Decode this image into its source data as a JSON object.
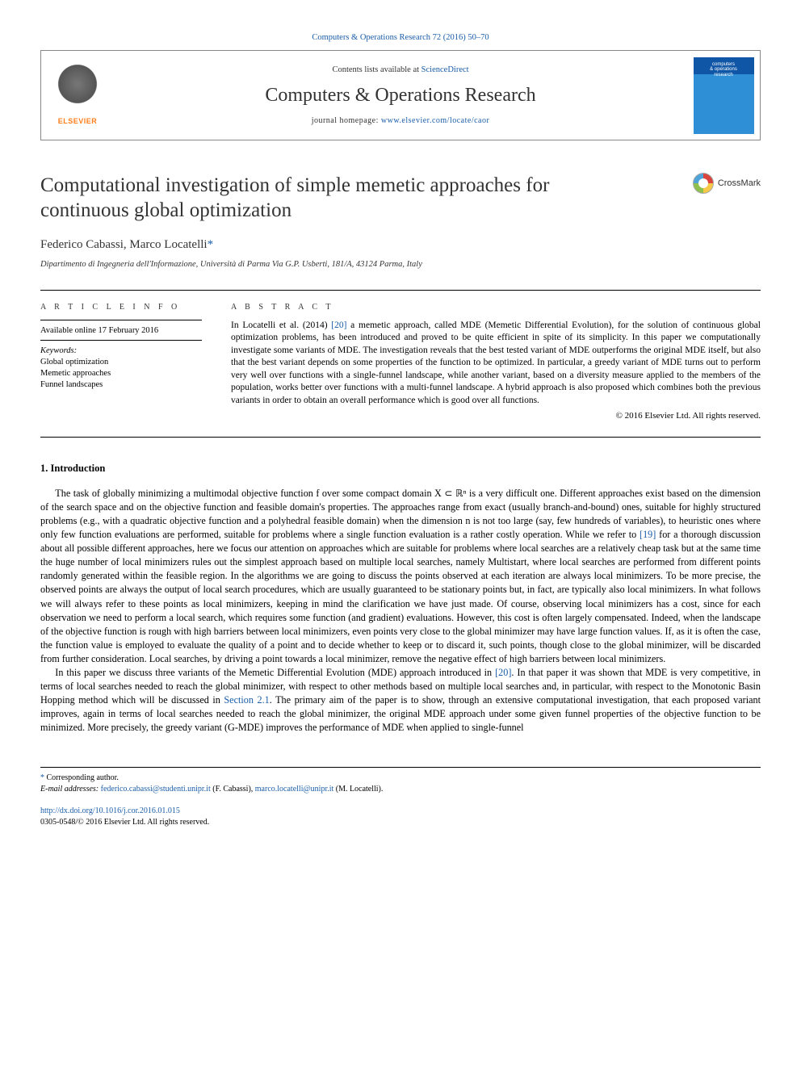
{
  "header": {
    "top_link_text": "Computers & Operations Research 72 (2016) 50–70",
    "contents_prefix": "Contents lists available at ",
    "contents_link": "ScienceDirect",
    "journal_title": "Computers & Operations Research",
    "homepage_prefix": "journal homepage: ",
    "homepage_url": "www.elsevier.com/locate/caor",
    "elsevier_label": "ELSEVIER",
    "cover_text_lines": [
      "computers",
      "& operations",
      "research"
    ]
  },
  "article": {
    "title": "Computational investigation of simple memetic approaches for continuous global optimization",
    "crossmark_label": "CrossMark",
    "authors_html_prefix": "Federico Cabassi, Marco Locatelli",
    "corr_symbol": "*",
    "affiliation": "Dipartimento di Ingegneria dell'Informazione, Università di Parma Via G.P. Usberti, 181/A, 43124 Parma, Italy"
  },
  "info": {
    "heading": "A R T I C L E  I N F O",
    "available": "Available online 17 February 2016",
    "keywords_label": "Keywords:",
    "keywords": [
      "Global optimization",
      "Memetic approaches",
      "Funnel landscapes"
    ]
  },
  "abstract": {
    "heading": "A B S T R A C T",
    "text_before_ref": "In Locatelli et al. (2014) ",
    "ref": "[20]",
    "text_after_ref": " a memetic approach, called MDE (Memetic Differential Evolution), for the solution of continuous global optimization problems, has been introduced and proved to be quite efficient in spite of its simplicity. In this paper we computationally investigate some variants of MDE. The investigation reveals that the best tested variant of MDE outperforms the original MDE itself, but also that the best variant depends on some properties of the function to be optimized. In particular, a greedy variant of MDE turns out to perform very well over functions with a single-funnel landscape, while another variant, based on a diversity measure applied to the members of the population, works better over functions with a multi-funnel landscape. A hybrid approach is also proposed which combines both the previous variants in order to obtain an overall performance which is good over all functions.",
    "copyright": "© 2016 Elsevier Ltd. All rights reserved."
  },
  "section1": {
    "title": "1.  Introduction",
    "para1_a": "The task of globally minimizing a multimodal objective function f over some compact domain X ⊂ ℝⁿ is a very difficult one. Different approaches exist based on the dimension of the search space and on the objective function and feasible domain's properties. The approaches range from exact (usually branch-and-bound) ones, suitable for highly structured problems (e.g., with a quadratic objective function and a polyhedral feasible domain) when the dimension n is not too large (say, few hundreds of variables), to heuristic ones where only few function evaluations are performed, suitable for problems where a single function evaluation is a rather costly operation. While we refer to ",
    "para1_ref1": "[19]",
    "para1_b": " for a thorough discussion about all possible different approaches, here we focus our attention on approaches which are suitable for problems where local searches are a relatively cheap task but at the same time the huge number of local minimizers rules out the simplest approach based on multiple local searches, namely Multistart, where local searches are performed from different points randomly generated within the feasible region. In the algorithms we are going to discuss the points observed at each iteration are always local minimizers. To be more precise, the observed points are always the output of local search procedures, which are usually guaranteed to be stationary points but, in fact, are typically also local minimizers. In what follows we will always refer to these points as local minimizers, keeping in mind the clarification we have just made. Of course, observing local minimizers has a cost, since for each observation we need to perform a local search, which requires some function (and gradient) evaluations. However, this cost is often largely compensated. Indeed, when the landscape of the objective function is rough with high barriers between local minimizers, even points very close to the global minimizer may have large function values. If, as it is often the case, the function value is employed to evaluate the quality of a point and to decide whether to keep or to discard it, such points, though close to the global minimizer, will be discarded from further consideration. Local searches, by driving a point towards a local minimizer, remove the negative effect of high barriers between local minimizers.",
    "para2_a": "In this paper we discuss three variants of the Memetic Differential Evolution (MDE) approach introduced in ",
    "para2_ref1": "[20]",
    "para2_b": ". In that paper it was shown that MDE is very competitive, in terms of local searches needed to reach the global minimizer, with respect to other methods based on multiple local searches and, in particular, with respect to the Monotonic Basin Hopping method which will be discussed in ",
    "para2_ref2": "Section 2.1",
    "para2_c": ". The primary aim of the paper is to show, through an extensive computational investigation, that each proposed variant improves, again in terms of local searches needed to reach the global minimizer, the original MDE approach under some given funnel properties of the objective function to be minimized. More precisely, the greedy variant (G-MDE) improves the performance of MDE when applied to single-funnel"
  },
  "footer": {
    "corr_label": "Corresponding author.",
    "email_label": "E-mail addresses: ",
    "email1": "federico.cabassi@studenti.unipr.it",
    "email1_name": " (F. Cabassi), ",
    "email2": "marco.locatelli@unipr.it",
    "email2_name": " (M. Locatelli).",
    "doi": "http://dx.doi.org/10.1016/j.cor.2016.01.015",
    "issn_line": "0305-0548/© 2016 Elsevier Ltd. All rights reserved."
  },
  "colors": {
    "link": "#1a5da8",
    "elsevier_orange": "#ff7d1a",
    "cover_top": "#1056a6",
    "cover_bottom": "#2f8fd6"
  }
}
